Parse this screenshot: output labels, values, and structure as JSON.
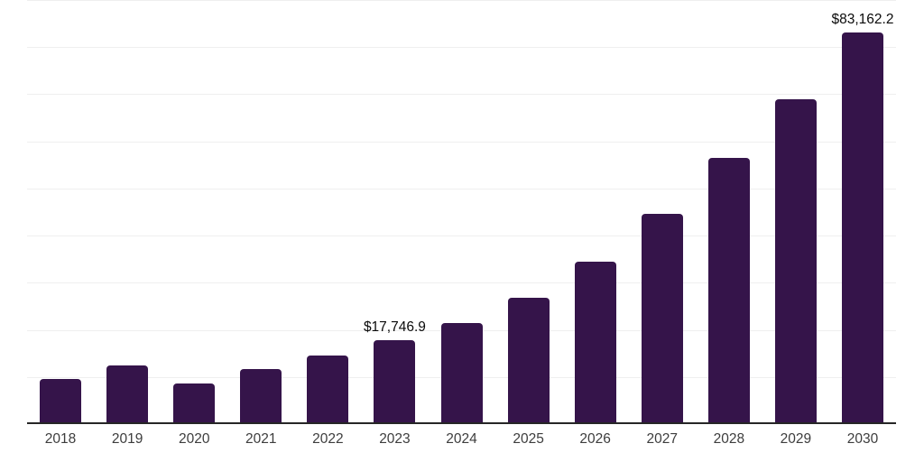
{
  "chart_data": {
    "type": "bar",
    "title": "",
    "xlabel": "",
    "ylabel": "",
    "categories": [
      "2018",
      "2019",
      "2020",
      "2021",
      "2022",
      "2023",
      "2024",
      "2025",
      "2026",
      "2027",
      "2028",
      "2029",
      "2030"
    ],
    "values": [
      9600,
      12500,
      8600,
      11700,
      14600,
      17746.9,
      21500,
      26900,
      34400,
      44600,
      56500,
      69000,
      83162.2
    ],
    "annotations": [
      {
        "index": 5,
        "category": "2023",
        "text": "$17,746.9"
      },
      {
        "index": 12,
        "category": "2030",
        "text": "$83,162.2"
      }
    ],
    "ylim": [
      0,
      90000
    ],
    "gridline_step": 10000,
    "grid_on": true,
    "legend": "none",
    "colors": {
      "bar": "#35144A",
      "grid": "#efefef",
      "axis": "#262626",
      "annotation_text": "#0a0a0a",
      "tick_text": "#3d3d3d",
      "background": "#ffffff"
    }
  }
}
